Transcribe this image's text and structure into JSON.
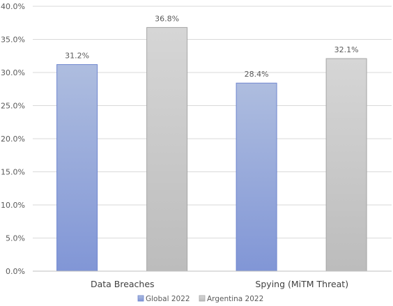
{
  "chart_data": {
    "type": "bar",
    "title": "",
    "xlabel": "",
    "ylabel": "",
    "categories": [
      "Data Breaches",
      "Spying (MiTM Threat)"
    ],
    "series": [
      {
        "name": "Global 2022",
        "values": [
          31.2,
          28.4
        ],
        "labels": [
          "31.2%",
          "28.4%"
        ],
        "color": "#8fa5dc"
      },
      {
        "name": "Argentina 2022",
        "values": [
          36.8,
          32.1
        ],
        "labels": [
          "36.8%",
          "32.1%"
        ],
        "color": "#c8c8c8"
      }
    ],
    "ylim": [
      0,
      40
    ],
    "yticks": [
      0,
      5,
      10,
      15,
      20,
      25,
      30,
      35,
      40
    ],
    "ytick_labels": [
      "0.0%",
      "5.0%",
      "10.0%",
      "15.0%",
      "20.0%",
      "25.0%",
      "30.0%",
      "35.0%",
      "40.0%"
    ],
    "grid": "horizontal",
    "legend_position": "bottom"
  }
}
